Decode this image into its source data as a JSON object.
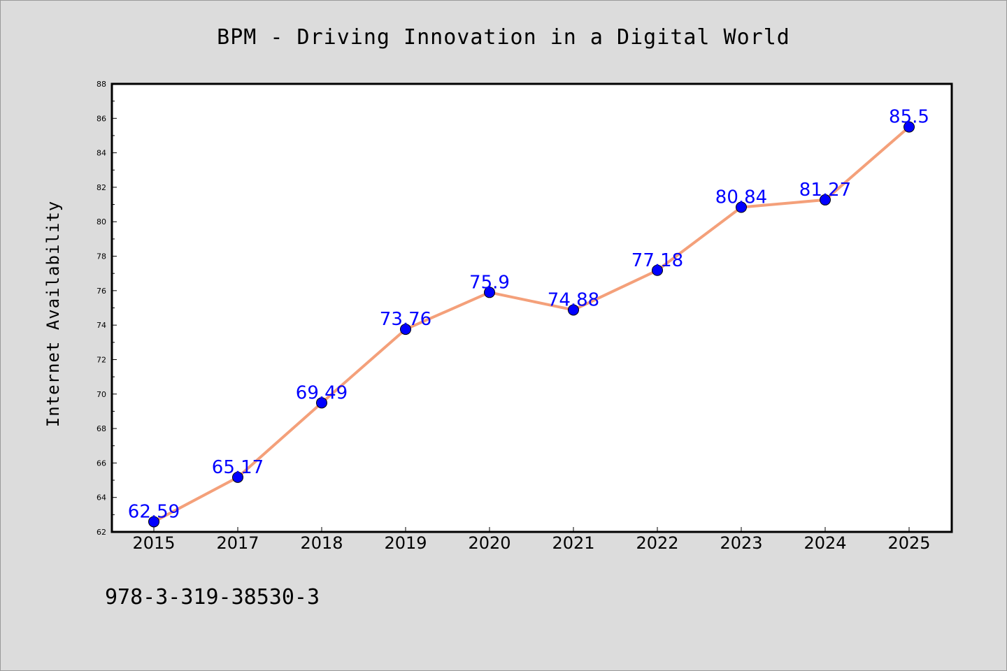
{
  "chart_data": {
    "type": "line",
    "title": "BPM - Driving Innovation in a Digital World",
    "xlabel": "",
    "ylabel": "Internet Availability",
    "categories": [
      "2015",
      "2017",
      "2018",
      "2019",
      "2020",
      "2021",
      "2022",
      "2023",
      "2024",
      "2025"
    ],
    "series": [
      {
        "values": [
          62.59,
          65.17,
          69.49,
          73.76,
          75.9,
          74.88,
          77.18,
          80.84,
          81.27,
          85.5
        ],
        "labels": [
          "62.59",
          "65.17",
          "69.49",
          "73.76",
          "75.9",
          "74.88",
          "77.18",
          "80.84",
          "81.27",
          "85.5"
        ]
      }
    ],
    "ylim": [
      62,
      88
    ],
    "yticks": [
      "62",
      "64",
      "66",
      "68",
      "70",
      "72",
      "74",
      "76",
      "78",
      "80",
      "82",
      "84",
      "86",
      "88"
    ],
    "grid": false,
    "legend": "none",
    "colors": {
      "line": "#f4a07a",
      "marker": "#0000ff",
      "data_label": "#0000ff",
      "plot_background": "#ffffff",
      "page_background": "#dcdcdc"
    }
  },
  "footnote": "978-3-319-38530-3"
}
